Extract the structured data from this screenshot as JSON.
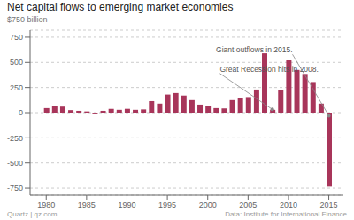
{
  "chart_data": {
    "type": "bar",
    "title": "Net capital flows to emerging market economies",
    "ylabel": "$750 billion",
    "x": [
      1980,
      1981,
      1982,
      1983,
      1984,
      1985,
      1986,
      1987,
      1988,
      1989,
      1990,
      1991,
      1992,
      1993,
      1994,
      1995,
      1996,
      1997,
      1998,
      1999,
      2000,
      2001,
      2002,
      2003,
      2004,
      2005,
      2006,
      2007,
      2008,
      2009,
      2010,
      2011,
      2012,
      2013,
      2014,
      2015
    ],
    "values": [
      45,
      70,
      60,
      25,
      18,
      12,
      -8,
      18,
      38,
      28,
      38,
      28,
      32,
      115,
      90,
      180,
      195,
      170,
      125,
      80,
      70,
      45,
      42,
      125,
      150,
      155,
      230,
      590,
      28,
      225,
      520,
      425,
      385,
      305,
      90,
      -735
    ],
    "color": "#A8355A",
    "xlim": [
      1978.0,
      2016.8
    ],
    "xticks": [
      1980,
      1985,
      1990,
      1995,
      2000,
      2005,
      2010,
      2015
    ],
    "ylim": [
      -820,
      820
    ],
    "yticks": [
      -750,
      -500,
      -250,
      0,
      250,
      500,
      750
    ],
    "grid": true,
    "annotations": [
      {
        "text": "Great Recession hits in 2008.",
        "x": 2008,
        "y": 32,
        "text_x": 2001.5,
        "text_y": 390
      },
      {
        "text": "Giant outflows in 2015.",
        "x": 2015,
        "y": -30,
        "text_x": 2010.5,
        "text_y": 580
      }
    ],
    "source_left": "Quartz | qz.com",
    "source_right": "Data: Institute for International Finance"
  }
}
